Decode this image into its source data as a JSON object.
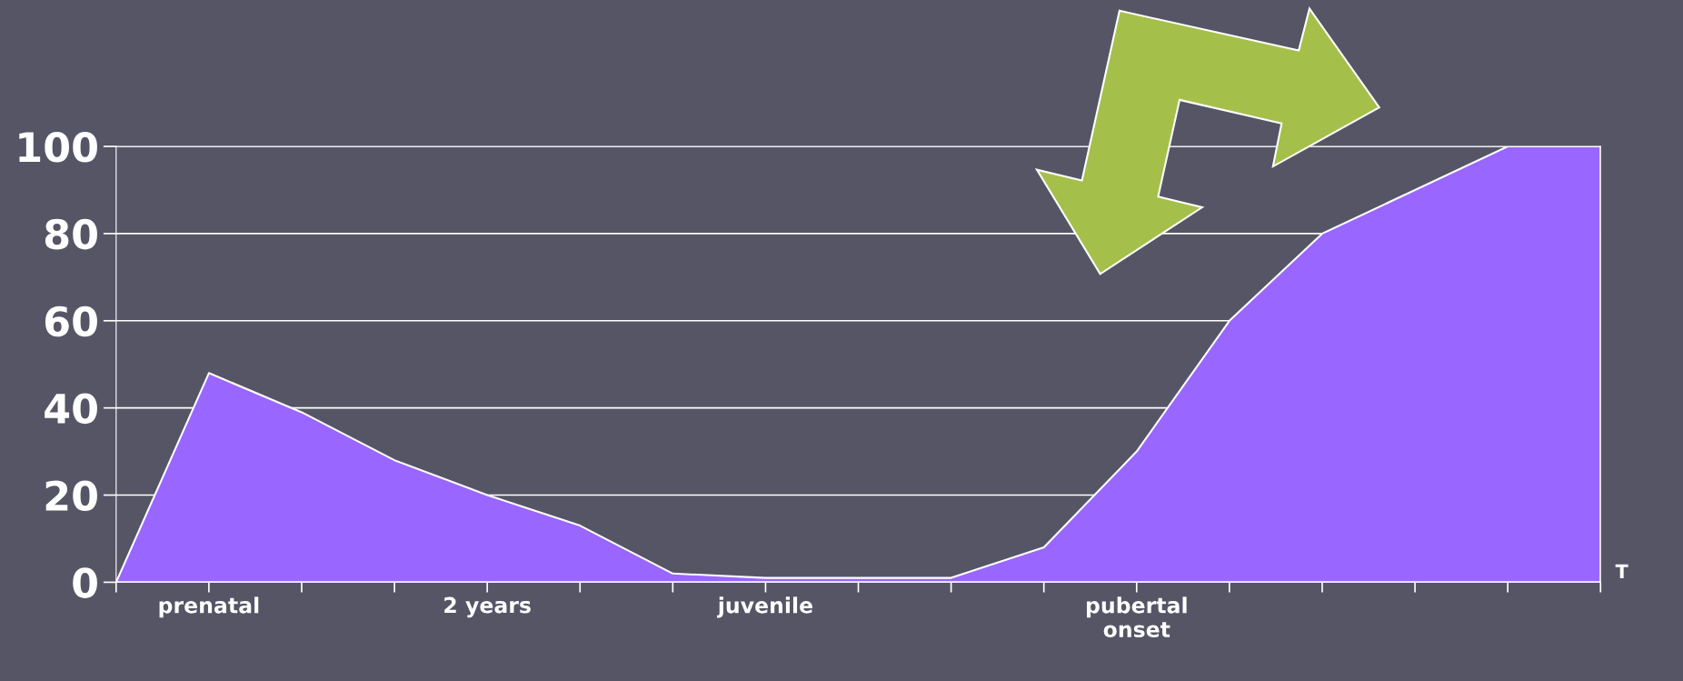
{
  "chart_data": {
    "type": "area",
    "categories": [
      null,
      "prenatal",
      null,
      null,
      "2 years",
      null,
      null,
      "juvenile",
      null,
      null,
      null,
      "pubertal\nonset",
      null,
      null,
      null,
      null,
      null
    ],
    "series": [
      {
        "color": "#9966ff",
        "values": [
          0,
          48,
          39,
          28,
          20,
          13,
          2,
          1,
          1,
          1,
          8,
          30,
          60,
          80,
          90,
          100,
          100
        ]
      }
    ],
    "ylim": [
      0,
      100
    ],
    "yticks": [
      0,
      20,
      40,
      60,
      80,
      100
    ],
    "grid": "y",
    "annotations": [
      "T"
    ]
  }
}
